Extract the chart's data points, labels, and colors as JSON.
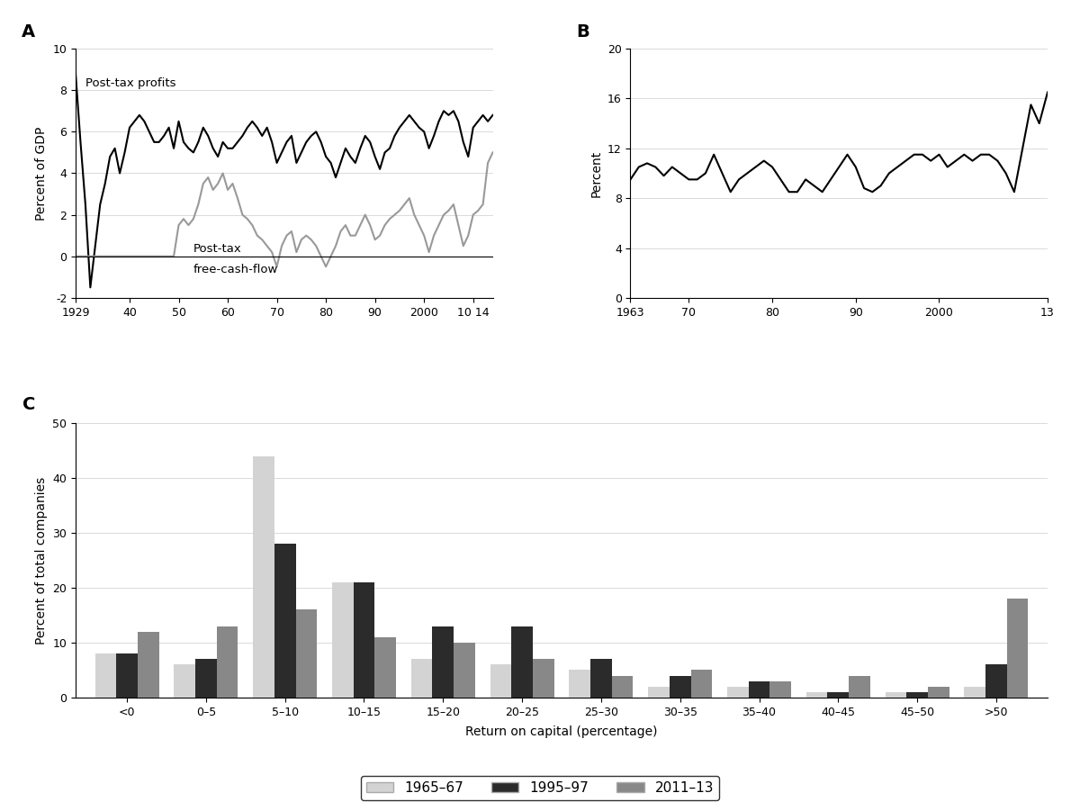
{
  "panel_A_label": "A",
  "panel_B_label": "B",
  "panel_C_label": "C",
  "panel_A_ylabel": "Percent of GDP",
  "panel_A_ylim": [
    -2,
    10
  ],
  "panel_A_yticks": [
    -2,
    0,
    2,
    4,
    6,
    8,
    10
  ],
  "panel_A_xticks": [
    1929,
    1940,
    1950,
    1960,
    1970,
    1980,
    1990,
    2000,
    2010
  ],
  "panel_A_xticklabels": [
    "1929",
    "40",
    "50",
    "60",
    "70",
    "80",
    "90",
    "2000",
    "10 14"
  ],
  "panel_B_ylabel": "Percent",
  "panel_B_ylim": [
    0,
    20
  ],
  "panel_B_yticks": [
    0,
    4,
    8,
    12,
    16,
    20
  ],
  "panel_B_xticks": [
    1963,
    1970,
    1980,
    1990,
    2000,
    2013
  ],
  "panel_B_xticklabels": [
    "1963",
    "70",
    "80",
    "90",
    "2000",
    "13"
  ],
  "panel_C_ylabel": "Percent of total companies",
  "panel_C_xlabel": "Return on capital (percentage)",
  "panel_C_ylim": [
    0,
    50
  ],
  "panel_C_yticks": [
    0,
    10,
    20,
    30,
    40,
    50
  ],
  "panel_C_categories": [
    "<0",
    "0–5",
    "5–10",
    "10–15",
    "15–20",
    "20–25",
    "25–30",
    "30–35",
    "35–40",
    "40–45",
    "45–50",
    ">50"
  ],
  "panel_C_1965": [
    8,
    6,
    44,
    21,
    7,
    6,
    5,
    2,
    2,
    1,
    1,
    2
  ],
  "panel_C_1995": [
    8,
    7,
    28,
    21,
    13,
    13,
    7,
    4,
    3,
    1,
    1,
    6
  ],
  "panel_C_2011": [
    12,
    13,
    16,
    11,
    10,
    7,
    4,
    5,
    3,
    4,
    2,
    18
  ],
  "color_1965": "#d3d3d3",
  "color_1995": "#2b2b2b",
  "color_2011": "#888888",
  "legend_labels": [
    "1965–67",
    "1995–97",
    "2011–13"
  ],
  "profits_label": "Post-tax profits",
  "fcf_label": "Post-tax\nfree-cash-flow",
  "profits_x": [
    1929,
    1930,
    1931,
    1932,
    1933,
    1934,
    1935,
    1936,
    1937,
    1938,
    1939,
    1940,
    1941,
    1942,
    1943,
    1944,
    1945,
    1946,
    1947,
    1948,
    1949,
    1950,
    1951,
    1952,
    1953,
    1954,
    1955,
    1956,
    1957,
    1958,
    1959,
    1960,
    1961,
    1962,
    1963,
    1964,
    1965,
    1966,
    1967,
    1968,
    1969,
    1970,
    1971,
    1972,
    1973,
    1974,
    1975,
    1976,
    1977,
    1978,
    1979,
    1980,
    1981,
    1982,
    1983,
    1984,
    1985,
    1986,
    1987,
    1988,
    1989,
    1990,
    1991,
    1992,
    1993,
    1994,
    1995,
    1996,
    1997,
    1998,
    1999,
    2000,
    2001,
    2002,
    2003,
    2004,
    2005,
    2006,
    2007,
    2008,
    2009,
    2010,
    2011,
    2012,
    2013,
    2014
  ],
  "profits_y": [
    8.8,
    5.5,
    2.5,
    -1.5,
    0.5,
    2.5,
    3.5,
    4.8,
    5.2,
    4.0,
    5.0,
    6.2,
    6.5,
    6.8,
    6.5,
    6.0,
    5.5,
    5.5,
    5.8,
    6.2,
    5.2,
    6.5,
    5.5,
    5.2,
    5.0,
    5.5,
    6.2,
    5.8,
    5.2,
    4.8,
    5.5,
    5.2,
    5.2,
    5.5,
    5.8,
    6.2,
    6.5,
    6.2,
    5.8,
    6.2,
    5.5,
    4.5,
    5.0,
    5.5,
    5.8,
    4.5,
    5.0,
    5.5,
    5.8,
    6.0,
    5.5,
    4.8,
    4.5,
    3.8,
    4.5,
    5.2,
    4.8,
    4.5,
    5.2,
    5.8,
    5.5,
    4.8,
    4.2,
    5.0,
    5.2,
    5.8,
    6.2,
    6.5,
    6.8,
    6.5,
    6.2,
    6.0,
    5.2,
    5.8,
    6.5,
    7.0,
    6.8,
    7.0,
    6.5,
    5.5,
    4.8,
    6.2,
    6.5,
    6.8,
    6.5,
    6.8
  ],
  "fcf_x": [
    1929,
    1930,
    1931,
    1932,
    1933,
    1934,
    1935,
    1936,
    1937,
    1938,
    1939,
    1940,
    1941,
    1942,
    1943,
    1944,
    1945,
    1946,
    1947,
    1948,
    1949,
    1950,
    1951,
    1952,
    1953,
    1954,
    1955,
    1956,
    1957,
    1958,
    1959,
    1960,
    1961,
    1962,
    1963,
    1964,
    1965,
    1966,
    1967,
    1968,
    1969,
    1970,
    1971,
    1972,
    1973,
    1974,
    1975,
    1976,
    1977,
    1978,
    1979,
    1980,
    1981,
    1982,
    1983,
    1984,
    1985,
    1986,
    1987,
    1988,
    1989,
    1990,
    1991,
    1992,
    1993,
    1994,
    1995,
    1996,
    1997,
    1998,
    1999,
    2000,
    2001,
    2002,
    2003,
    2004,
    2005,
    2006,
    2007,
    2008,
    2009,
    2010,
    2011,
    2012,
    2013,
    2014
  ],
  "fcf_y": [
    0.0,
    0.0,
    0.0,
    0.0,
    0.0,
    0.0,
    0.0,
    0.0,
    0.0,
    0.0,
    0.0,
    0.0,
    0.0,
    0.0,
    0.0,
    0.0,
    0.0,
    0.0,
    0.0,
    0.0,
    0.0,
    1.5,
    1.8,
    1.5,
    1.8,
    2.5,
    3.5,
    3.8,
    3.2,
    3.5,
    4.0,
    3.2,
    3.5,
    2.8,
    2.0,
    1.8,
    1.5,
    1.0,
    0.8,
    0.5,
    0.2,
    -0.5,
    0.5,
    1.0,
    1.2,
    0.2,
    0.8,
    1.0,
    0.8,
    0.5,
    0.0,
    -0.5,
    0.0,
    0.5,
    1.2,
    1.5,
    1.0,
    1.0,
    1.5,
    2.0,
    1.5,
    0.8,
    1.0,
    1.5,
    1.8,
    2.0,
    2.2,
    2.5,
    2.8,
    2.0,
    1.5,
    1.0,
    0.2,
    1.0,
    1.5,
    2.0,
    2.2,
    2.5,
    1.5,
    0.5,
    1.0,
    2.0,
    2.2,
    2.5,
    4.5,
    5.0
  ],
  "roc_x": [
    1963,
    1964,
    1965,
    1966,
    1967,
    1968,
    1969,
    1970,
    1971,
    1972,
    1973,
    1974,
    1975,
    1976,
    1977,
    1978,
    1979,
    1980,
    1981,
    1982,
    1983,
    1984,
    1985,
    1986,
    1987,
    1988,
    1989,
    1990,
    1991,
    1992,
    1993,
    1994,
    1995,
    1996,
    1997,
    1998,
    1999,
    2000,
    2001,
    2002,
    2003,
    2004,
    2005,
    2006,
    2007,
    2008,
    2009,
    2010,
    2011,
    2012,
    2013
  ],
  "roc_y": [
    9.5,
    10.5,
    10.8,
    10.5,
    9.8,
    10.5,
    10.0,
    9.5,
    9.5,
    10.0,
    11.5,
    10.0,
    8.5,
    9.5,
    10.0,
    10.5,
    11.0,
    10.5,
    9.5,
    8.5,
    8.5,
    9.5,
    9.0,
    8.5,
    9.5,
    10.5,
    11.5,
    10.5,
    8.8,
    8.5,
    9.0,
    10.0,
    10.5,
    11.0,
    11.5,
    11.5,
    11.0,
    11.5,
    10.5,
    11.0,
    11.5,
    11.0,
    11.5,
    11.5,
    11.0,
    10.0,
    8.5,
    12.0,
    15.5,
    14.0,
    16.5
  ]
}
